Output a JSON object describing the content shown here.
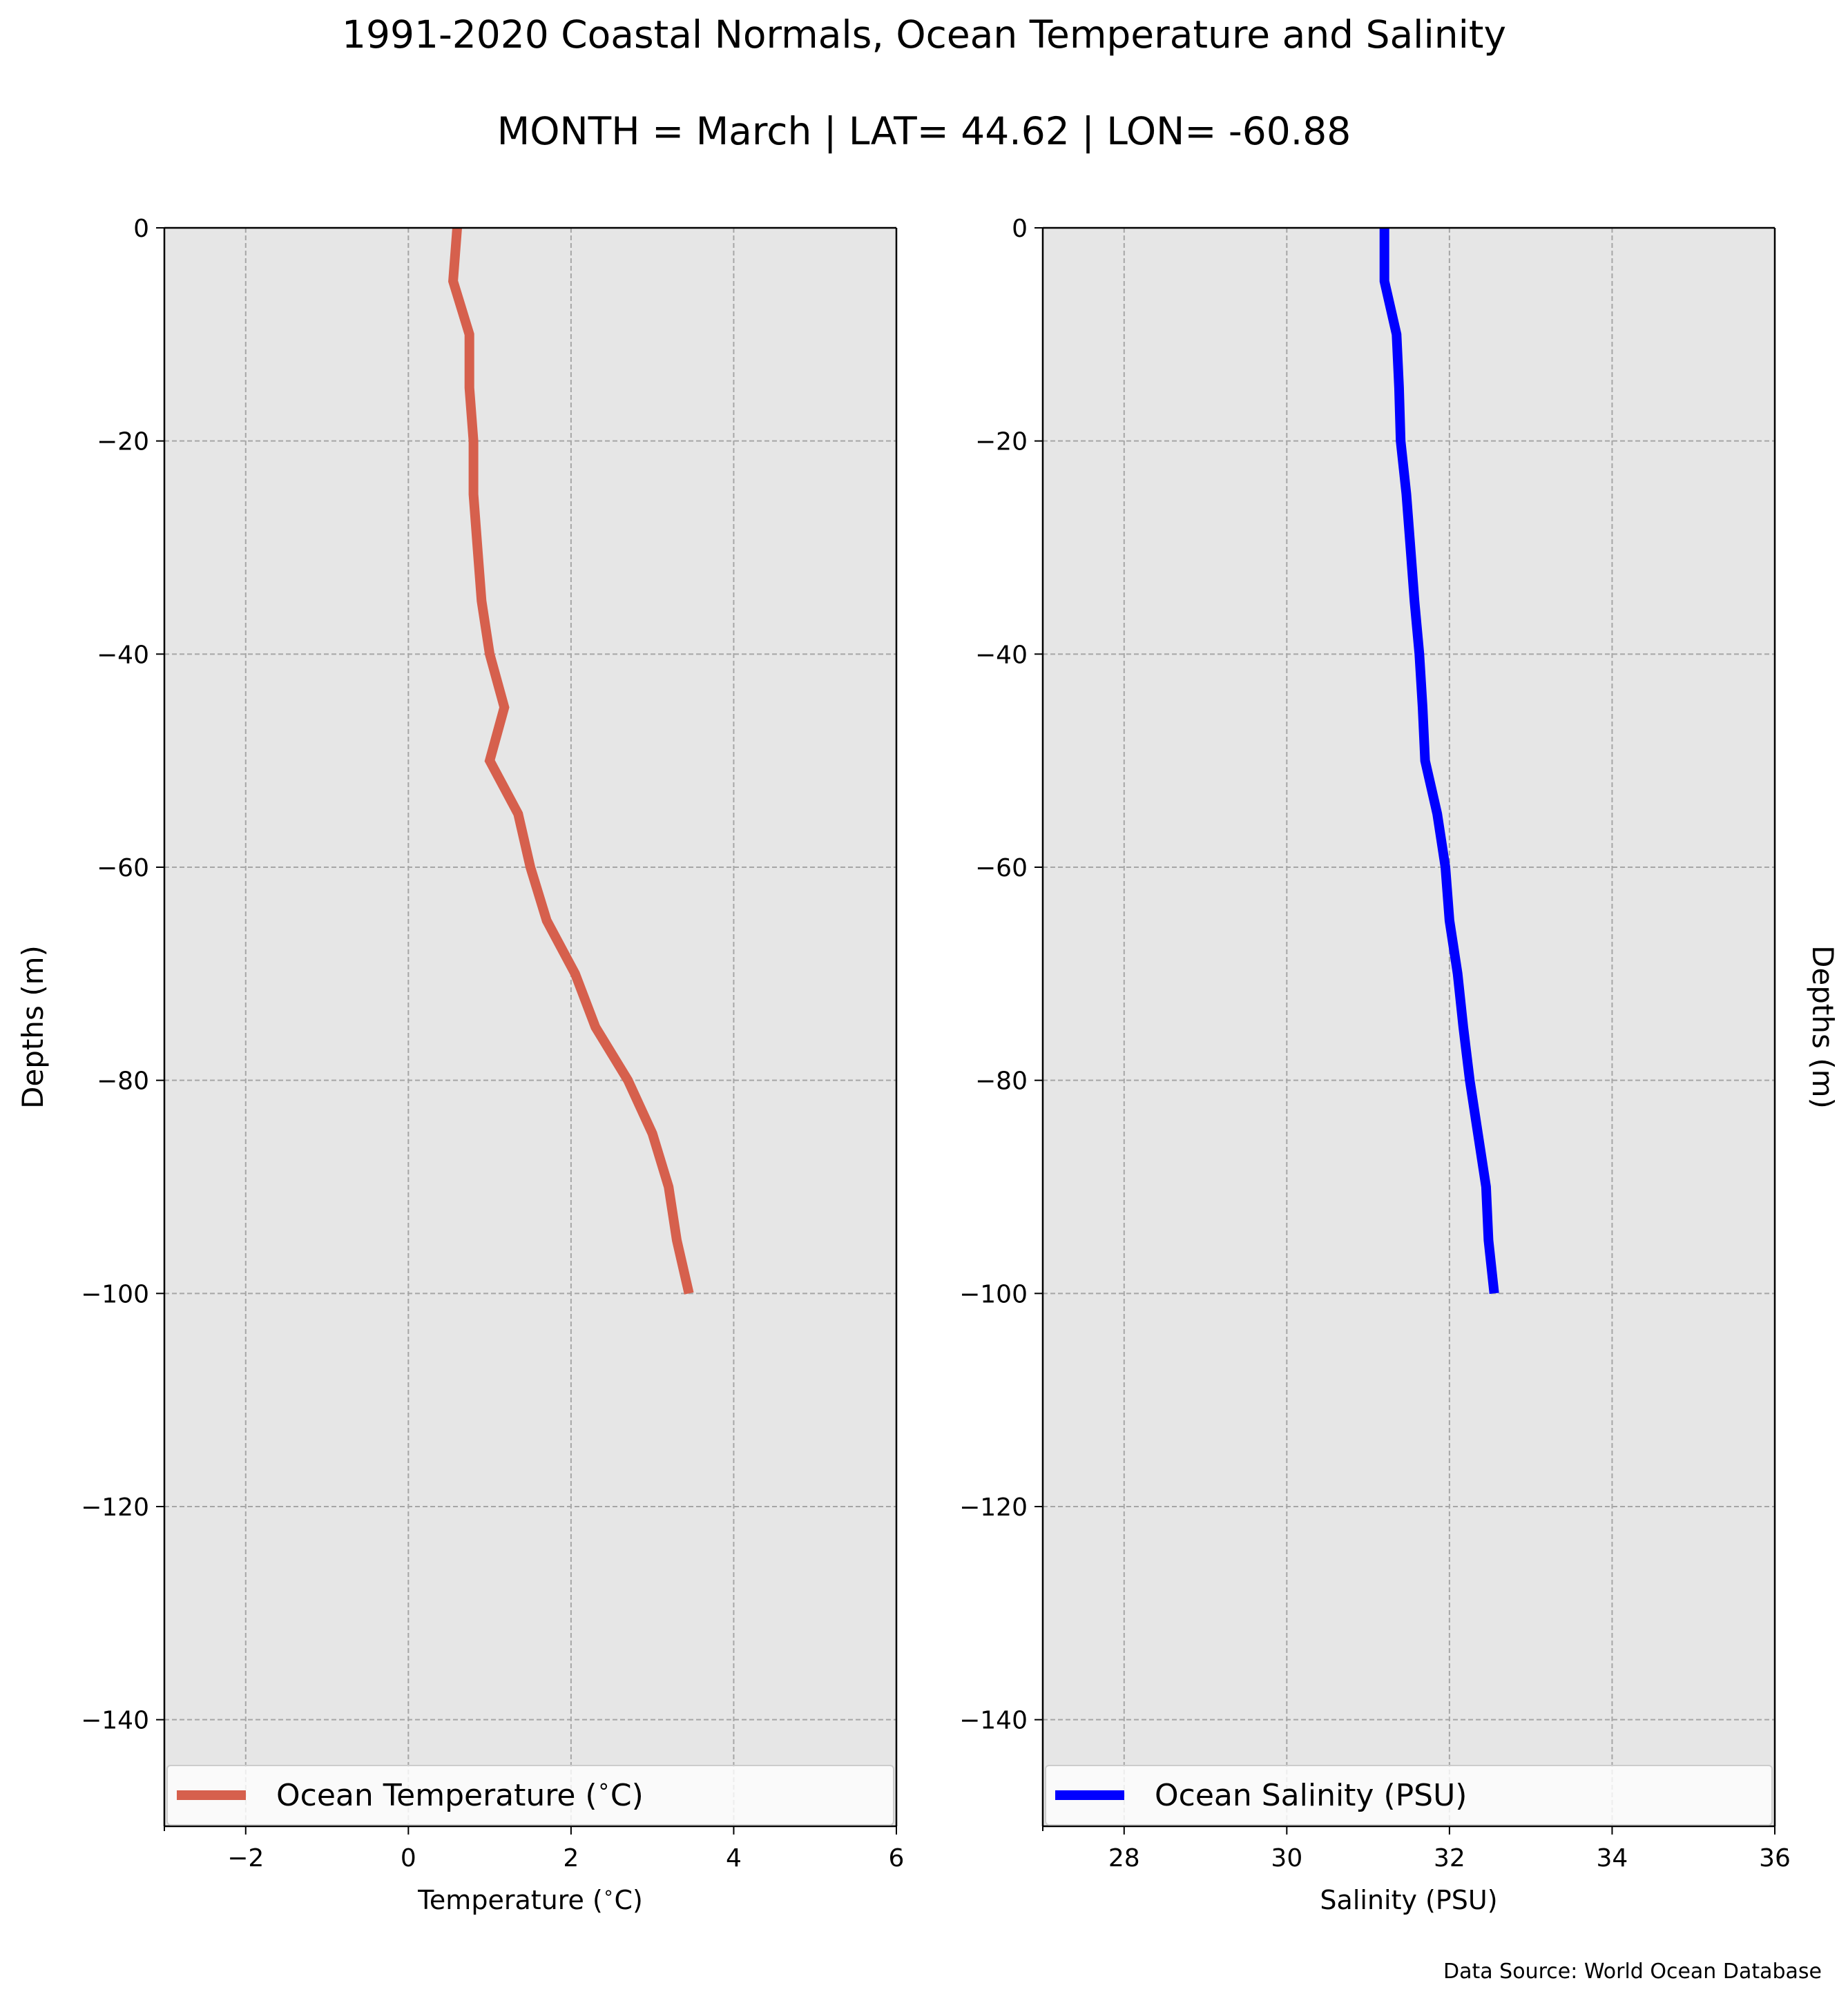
{
  "figure": {
    "title": "1991-2020 Coastal Normals, Ocean Temperature and Salinity",
    "subtitle": "MONTH = March | LAT= 44.62 | LON= -60.88",
    "source": "Data Source: World Ocean Database"
  },
  "chart_data": [
    {
      "type": "line",
      "title": "",
      "xlabel": "Temperature ($^\\circ$C)",
      "ylabel": "Depths (m)",
      "xlim": [
        -3,
        6
      ],
      "ylim": [
        -150,
        0
      ],
      "xticks": [
        -2,
        0,
        2,
        4,
        6
      ],
      "xtick_labels": [
        "−2",
        "0",
        "2",
        "4",
        "6"
      ],
      "yticks": [
        0,
        -20,
        -40,
        -60,
        -80,
        -100,
        -120,
        -140
      ],
      "ytick_labels": [
        "0",
        "−20",
        "−40",
        "−60",
        "−80",
        "−100",
        "−120",
        "−140"
      ],
      "grid": true,
      "legend_position": "bottom",
      "color": "#d6604d",
      "series": [
        {
          "name": "Ocean Temperature ($^\\circ$C)",
          "x": [
            0.6,
            0.55,
            0.75,
            0.75,
            0.8,
            0.8,
            0.85,
            0.9,
            1.0,
            1.18,
            1.0,
            1.35,
            1.5,
            1.7,
            2.05,
            2.3,
            2.7,
            3.0,
            3.2,
            3.3,
            3.45
          ],
          "y": [
            0,
            -5,
            -10,
            -15,
            -20,
            -25,
            -30,
            -35,
            -40,
            -45,
            -50,
            -55,
            -60,
            -65,
            -70,
            -75,
            -80,
            -85,
            -90,
            -95,
            -100
          ]
        }
      ]
    },
    {
      "type": "line",
      "title": "",
      "xlabel": "Salinity (PSU)",
      "ylabel": "Depths (m)",
      "xlim": [
        27,
        36
      ],
      "ylim": [
        -150,
        0
      ],
      "xticks": [
        28,
        30,
        32,
        34,
        36
      ],
      "xtick_labels": [
        "28",
        "30",
        "32",
        "34",
        "36"
      ],
      "yticks": [
        0,
        -20,
        -40,
        -60,
        -80,
        -100,
        -120,
        -140
      ],
      "ytick_labels": [
        "0",
        "−20",
        "−40",
        "−60",
        "−80",
        "−100",
        "−120",
        "−140"
      ],
      "grid": true,
      "legend_position": "bottom",
      "color": "#0000ff",
      "series": [
        {
          "name": "Ocean Salinity (PSU)",
          "x": [
            31.2,
            31.2,
            31.35,
            31.38,
            31.4,
            31.47,
            31.52,
            31.57,
            31.63,
            31.67,
            31.7,
            31.85,
            31.95,
            32.0,
            32.1,
            32.17,
            32.25,
            32.35,
            32.45,
            32.48,
            32.55
          ],
          "y": [
            0,
            -5,
            -10,
            -15,
            -20,
            -25,
            -30,
            -35,
            -40,
            -45,
            -50,
            -55,
            -60,
            -65,
            -70,
            -75,
            -80,
            -85,
            -90,
            -95,
            -100
          ]
        }
      ]
    }
  ]
}
